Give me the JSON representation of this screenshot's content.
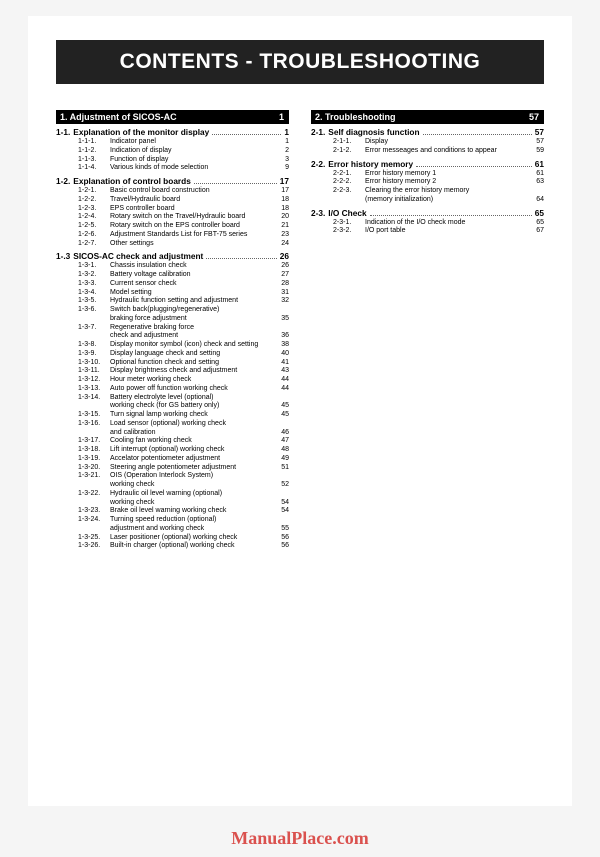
{
  "title": "CONTENTS - TROUBLESHOOTING",
  "title_fontsize": 21,
  "banner_bg": "#222222",
  "banner_fg": "#ffffff",
  "section_hdr_fontsize": 9,
  "sub_hdr_fontsize": 8.3,
  "entry_fontsize": 7,
  "watermark": "ManualPlace.com",
  "watermark_color": "#d8403d",
  "watermark_fontsize": 18,
  "left": {
    "section": {
      "num": "1.",
      "title": "Adjustment of SICOS-AC",
      "page": "1"
    },
    "subs": [
      {
        "num": "1-1.",
        "title": "Explanation of the monitor display",
        "page": "1",
        "items": [
          {
            "num": "1-1-1.",
            "txt": "Indicator panel",
            "page": "1"
          },
          {
            "num": "1-1-2.",
            "txt": "Indication of display",
            "page": "2"
          },
          {
            "num": "1-1-3.",
            "txt": "Function of display",
            "page": "3"
          },
          {
            "num": "1-1-4.",
            "txt": "Various kinds of mode selection",
            "page": "9"
          }
        ]
      },
      {
        "num": "1-2.",
        "title": "Explanation of control boards",
        "page": "17",
        "items": [
          {
            "num": "1-2-1.",
            "txt": "Basic control board construction",
            "page": "17"
          },
          {
            "num": "1-2-2.",
            "txt": "Travel/Hydraulic board",
            "page": "18"
          },
          {
            "num": "1-2-3.",
            "txt": "EPS controller board",
            "page": "18"
          },
          {
            "num": "1-2-4.",
            "txt": "Rotary switch on the Travel/Hydraulic board",
            "page": "20"
          },
          {
            "num": "1-2-5.",
            "txt": "Rotary switch on the EPS controller board",
            "page": "21"
          },
          {
            "num": "1-2-6.",
            "txt": "Adjustment Standards List for FBT-75 series",
            "page": "23"
          },
          {
            "num": "1-2-7.",
            "txt": "Other settings",
            "page": "24"
          }
        ]
      },
      {
        "num": "1-.3",
        "title": "SICOS-AC check and adjustment",
        "page": "26",
        "items": [
          {
            "num": "1-3-1.",
            "txt": "Chassis insulation check",
            "page": "26"
          },
          {
            "num": "1-3-2.",
            "txt": "Battery voltage calibration",
            "page": "27"
          },
          {
            "num": "1-3-3.",
            "txt": "Current sensor check",
            "page": "28"
          },
          {
            "num": "1-3-4.",
            "txt": "Model setting",
            "page": "31"
          },
          {
            "num": "1-3-5.",
            "txt": "Hydraulic function setting and adjustment",
            "page": "32"
          },
          {
            "num": "1-3-6.",
            "txt": "Switch back(plugging/regenerative)",
            "page": ""
          },
          {
            "num": "",
            "txt": "braking force adjustment",
            "page": "35"
          },
          {
            "num": "1-3-7.",
            "txt": "Regenerative braking force",
            "page": ""
          },
          {
            "num": "",
            "txt": "check and adjustment",
            "page": "36"
          },
          {
            "num": "1-3-8.",
            "txt": "Display monitor symbol (icon) check and setting",
            "page": "38"
          },
          {
            "num": "1-3-9.",
            "txt": "Display language check and setting",
            "page": "40"
          },
          {
            "num": "1-3-10.",
            "txt": "Optional function check and setting",
            "page": "41"
          },
          {
            "num": "1-3-11.",
            "txt": "Display brightness check and adjustment",
            "page": "43"
          },
          {
            "num": "1-3-12.",
            "txt": "Hour meter working check",
            "page": "44"
          },
          {
            "num": "1-3-13.",
            "txt": "Auto power off function working check",
            "page": "44"
          },
          {
            "num": "1-3-14.",
            "txt": "Battery electrolyte level (optional)",
            "page": ""
          },
          {
            "num": "",
            "txt": "working check (for GS battery only)",
            "page": "45"
          },
          {
            "num": "1-3-15.",
            "txt": "Turn signal lamp working check",
            "page": "45"
          },
          {
            "num": "1-3-16.",
            "txt": "Load sensor (optional) working check",
            "page": ""
          },
          {
            "num": "",
            "txt": "and calibration",
            "page": "46"
          },
          {
            "num": "1-3-17.",
            "txt": "Cooling fan working check",
            "page": "47"
          },
          {
            "num": "1-3-18.",
            "txt": "Lift interrupt (optional) working check",
            "page": "48"
          },
          {
            "num": "1-3-19.",
            "txt": "Accelator potentiometer adjustment",
            "page": "49"
          },
          {
            "num": "1-3-20.",
            "txt": "Steering angle potentiometer adjustment",
            "page": "51"
          },
          {
            "num": "1-3-21.",
            "txt": "OIS (Operation Interlock System)",
            "page": ""
          },
          {
            "num": "",
            "txt": "working check",
            "page": "52"
          },
          {
            "num": "1-3-22.",
            "txt": "Hydraulic oil level warning (optional)",
            "page": ""
          },
          {
            "num": "",
            "txt": "working check",
            "page": "54"
          },
          {
            "num": "1-3-23.",
            "txt": "Brake oil level warning working check",
            "page": "54"
          },
          {
            "num": "1-3-24.",
            "txt": "Turning speed reduction (optional)",
            "page": ""
          },
          {
            "num": "",
            "txt": "adjustment and working check",
            "page": "55"
          },
          {
            "num": "1-3-25.",
            "txt": "Laser positioner (optional) working check",
            "page": "56"
          },
          {
            "num": "1-3-26.",
            "txt": "Built-in charger (optional) working check",
            "page": "56"
          }
        ]
      }
    ]
  },
  "right": {
    "section": {
      "num": "2.",
      "title": "Troubleshooting",
      "page": "57"
    },
    "subs": [
      {
        "num": "2-1.",
        "title": "Self diagnosis function",
        "page": "57",
        "items": [
          {
            "num": "2-1-1.",
            "txt": "Display",
            "page": "57"
          },
          {
            "num": "2-1-2.",
            "txt": "Error messeages and conditions to appear",
            "page": "59"
          }
        ]
      },
      {
        "num": "2-2.",
        "title": "Error history memory",
        "page": "61",
        "items": [
          {
            "num": "2-2-1.",
            "txt": "Error history memory 1",
            "page": "61"
          },
          {
            "num": "2-2-2.",
            "txt": "Error history memory 2",
            "page": "63"
          },
          {
            "num": "2-2-3.",
            "txt": "Clearing the error history memory",
            "page": ""
          },
          {
            "num": "",
            "txt": "(memory initialization)",
            "page": "64"
          }
        ]
      },
      {
        "num": "2-3.",
        "title": "I/O Check",
        "page": "65",
        "items": [
          {
            "num": "2-3-1.",
            "txt": "Indication of the I/O check mode",
            "page": "65"
          },
          {
            "num": "2-3-2.",
            "txt": "I/O port table",
            "page": "67"
          }
        ]
      }
    ]
  }
}
